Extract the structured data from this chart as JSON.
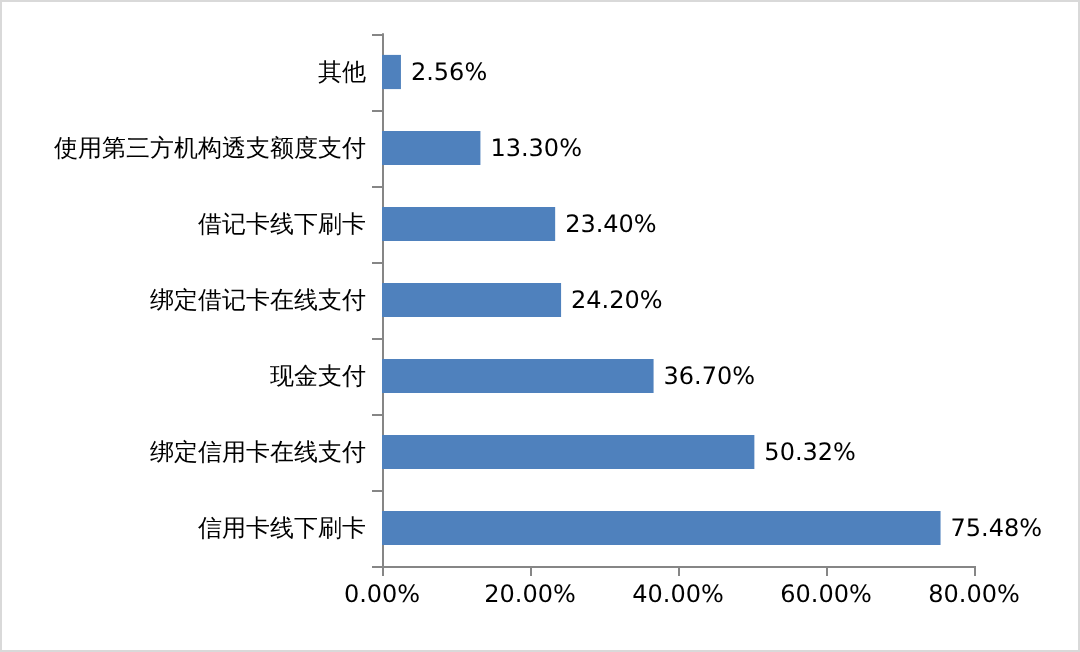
{
  "chart_data": {
    "type": "bar",
    "orientation": "horizontal",
    "categories": [
      "其他",
      "使用第三方机构透支额度支付",
      "借记卡线下刷卡",
      "绑定借记卡在线支付",
      "现金支付",
      "绑定信用卡在线支付",
      "信用卡线下刷卡"
    ],
    "values": [
      2.56,
      13.3,
      23.4,
      24.2,
      36.7,
      50.32,
      75.48
    ],
    "value_labels": [
      "2.56%",
      "13.30%",
      "23.40%",
      "24.20%",
      "36.70%",
      "50.32%",
      "75.48%"
    ],
    "color": "#4f81bd",
    "xlim": [
      0,
      80
    ],
    "xticks": [
      {
        "value": 0,
        "label": "0.00%"
      },
      {
        "value": 20,
        "label": "20.00%"
      },
      {
        "value": 40,
        "label": "40.00%"
      },
      {
        "value": 60,
        "label": "60.00%"
      },
      {
        "value": 80,
        "label": "80.00%"
      }
    ],
    "grid": false
  }
}
